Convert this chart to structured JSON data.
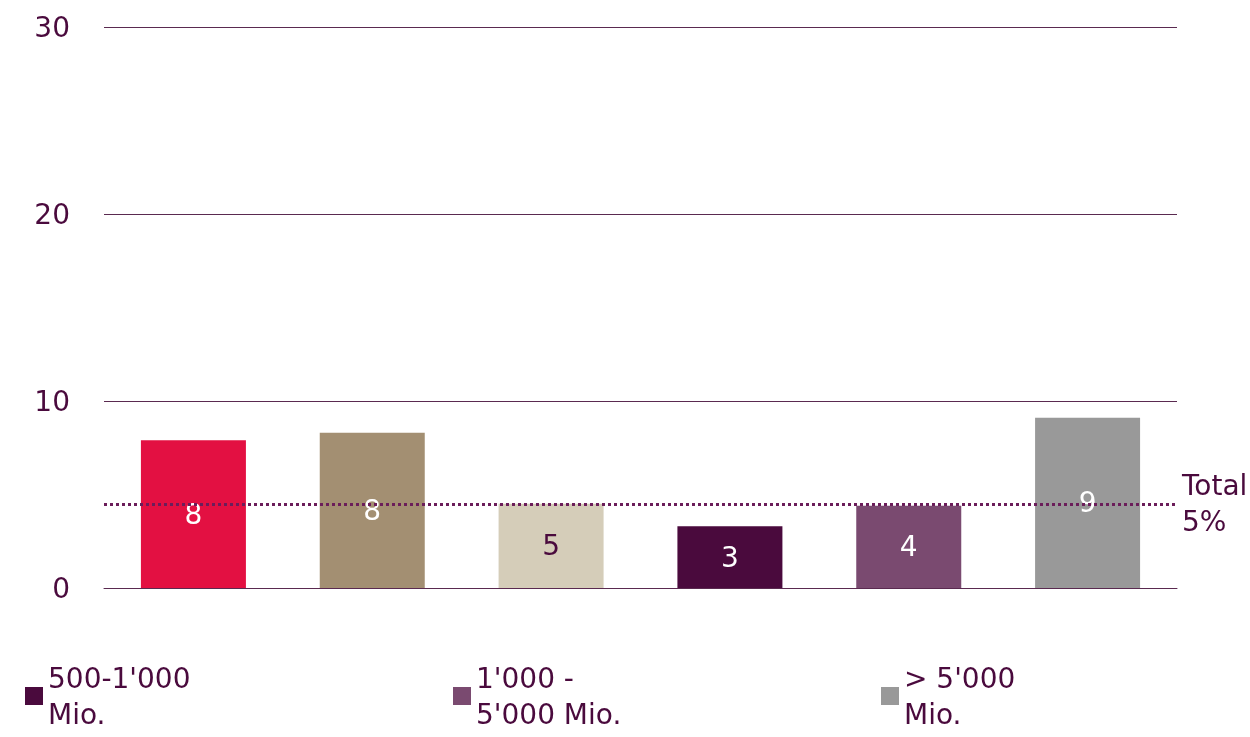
{
  "chart_data": {
    "type": "bar",
    "categories": [
      null,
      null,
      null,
      null,
      null,
      null
    ],
    "series": [
      {
        "color": "#e31042",
        "values": [
          7.9,
          null,
          null,
          null,
          null,
          null
        ],
        "value_labels": [
          "8",
          null,
          null,
          null,
          null,
          null
        ]
      },
      {
        "color": "#a38f72",
        "values": [
          null,
          8.3,
          null,
          null,
          null,
          null
        ],
        "value_labels": [
          null,
          "8",
          null,
          null,
          null,
          null
        ]
      },
      {
        "color": "#d5cdb9",
        "values": [
          null,
          null,
          4.5,
          null,
          null,
          null
        ],
        "value_labels": [
          null,
          null,
          "5",
          null,
          null,
          null
        ]
      },
      {
        "name": "500-1'000 Mio.",
        "color": "#4a0a3d",
        "values": [
          null,
          null,
          null,
          3.3,
          null,
          null
        ],
        "value_labels": [
          null,
          null,
          null,
          "3",
          null,
          null
        ]
      },
      {
        "name": "1'000 - 5'000 Mio.",
        "color": "#7a4a70",
        "values": [
          null,
          null,
          null,
          null,
          4.4,
          null
        ],
        "value_labels": [
          null,
          null,
          null,
          null,
          "4",
          null
        ]
      },
      {
        "name": "> 5'000 Mio.",
        "color": "#999999",
        "values": [
          null,
          null,
          null,
          null,
          null,
          9.1
        ],
        "value_labels": [
          null,
          null,
          null,
          null,
          null,
          "9"
        ]
      }
    ],
    "ylim": [
      0,
      30
    ],
    "yticks": [
      0,
      10,
      20,
      30
    ],
    "grid": "y",
    "legend": "bottom",
    "ref_lines": [
      {
        "axis": "y",
        "value": 4.5,
        "label": "Total 5%",
        "color": "#6b1d5a",
        "line_style": "dotted"
      }
    ]
  }
}
